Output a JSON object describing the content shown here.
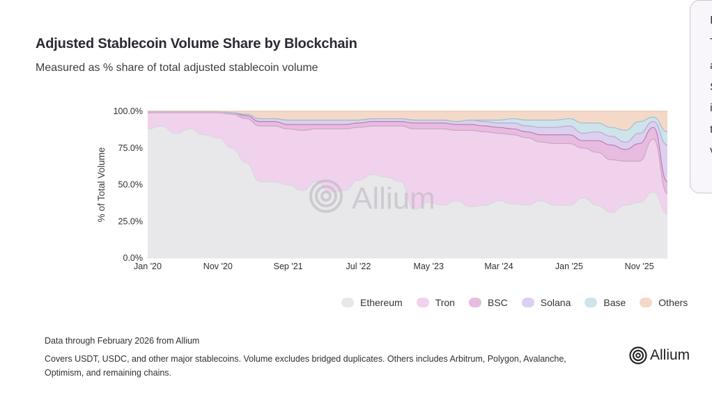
{
  "header": {
    "title": "Adjusted Stablecoin Volume Share by Blockchain",
    "subtitle": "Measured as % share of total adjusted stablecoin volume"
  },
  "legend": {
    "items": [
      {
        "label": "Ethereum",
        "color": "#e8e7ea"
      },
      {
        "label": "Tron",
        "color": "#f1d2ec"
      },
      {
        "label": "BSC",
        "color": "#e7bce0"
      },
      {
        "label": "Solana",
        "color": "#dcd0ee"
      },
      {
        "label": "Base",
        "color": "#cfe3ea"
      },
      {
        "label": "Others",
        "color": "#f4d9c8"
      }
    ]
  },
  "footer": {
    "source": "Data through February 2026 from Allium",
    "note": "Covers USDT, USDC, and other major stablecoins. Volume excludes bridged duplicates. Others includes Arbitrum, Polygon, Avalanche, Optimism, and remaining chains."
  },
  "brand": {
    "name": "Allium",
    "watermark": "Allium"
  },
  "side_panel": {
    "lines": [
      "I",
      "T",
      "a",
      "S",
      "i",
      "t",
      "v"
    ]
  },
  "chart_data": {
    "type": "area",
    "title": "Adjusted Stablecoin Volume Share by Blockchain",
    "subtitle": "Measured as % share of total adjusted stablecoin volume",
    "ylabel": "% of Total Volume",
    "xlabel": "",
    "ylim": [
      0,
      100
    ],
    "yticks": [
      "0.0%",
      "25.0%",
      "50.0%",
      "75.0%",
      "100.0%"
    ],
    "xticks": [
      "Jan '20",
      "Nov '20",
      "Sep '21",
      "Jul '22",
      "May '23",
      "Mar '24",
      "Jan '25",
      "Nov '25"
    ],
    "x": [
      "Jan '20",
      "Mar '20",
      "May '20",
      "Jul '20",
      "Sep '20",
      "Nov '20",
      "Jan '21",
      "Mar '21",
      "May '21",
      "Jul '21",
      "Sep '21",
      "Nov '21",
      "Jan '22",
      "Mar '22",
      "May '22",
      "Jul '22",
      "Sep '22",
      "Nov '22",
      "Jan '23",
      "Mar '23",
      "May '23",
      "Jul '23",
      "Sep '23",
      "Nov '23",
      "Jan '24",
      "Mar '24",
      "May '24",
      "Jul '24",
      "Sep '24",
      "Nov '24",
      "Jan '25",
      "Mar '25",
      "May '25",
      "Jul '25",
      "Sep '25",
      "Nov '25",
      "Jan '26",
      "Feb '26"
    ],
    "series": [
      {
        "name": "Ethereum",
        "color": "#e8e7ea",
        "values": [
          88,
          90,
          85,
          88,
          84,
          82,
          75,
          65,
          52,
          52,
          50,
          46,
          52,
          45,
          46,
          53,
          57,
          55,
          52,
          33,
          38,
          36,
          39,
          35,
          36,
          39,
          37,
          36,
          39,
          36,
          36,
          41,
          36,
          31,
          36,
          38,
          45,
          30
        ]
      },
      {
        "name": "Tron",
        "color": "#f1d2ec",
        "values": [
          11,
          9,
          14,
          11,
          15,
          17,
          23,
          30,
          38,
          38,
          38,
          41,
          36,
          43,
          42,
          36,
          33,
          35,
          38,
          55,
          50,
          52,
          48,
          52,
          50,
          46,
          47,
          46,
          40,
          42,
          42,
          34,
          36,
          36,
          30,
          28,
          36,
          14
        ]
      },
      {
        "name": "BSC",
        "color": "#e7bce0",
        "values": [
          1,
          1,
          1,
          1,
          1,
          1,
          1,
          2,
          3,
          3,
          3,
          4,
          3,
          3,
          3,
          3,
          3,
          3,
          3,
          4,
          4,
          4,
          4,
          4,
          4,
          4,
          4,
          4,
          5,
          6,
          6,
          5,
          8,
          10,
          8,
          12,
          8,
          8
        ]
      },
      {
        "name": "Solana",
        "color": "#dcd0ee",
        "values": [
          0,
          0,
          0,
          0,
          0,
          0,
          0,
          1,
          2,
          2,
          3,
          3,
          3,
          3,
          3,
          2,
          2,
          2,
          2,
          2,
          2,
          2,
          2,
          3,
          3,
          3,
          4,
          4,
          5,
          5,
          6,
          5,
          6,
          6,
          5,
          7,
          4,
          25
        ]
      },
      {
        "name": "Base",
        "color": "#cfe3ea",
        "values": [
          0,
          0,
          0,
          0,
          0,
          0,
          0,
          0,
          0,
          0,
          0,
          0,
          0,
          0,
          0,
          0,
          0,
          0,
          0,
          0,
          0,
          0,
          0,
          0,
          1,
          2,
          3,
          4,
          5,
          5,
          5,
          7,
          6,
          6,
          8,
          8,
          3,
          9
        ]
      },
      {
        "name": "Others",
        "color": "#f4d9c8",
        "values": [
          0,
          0,
          0,
          0,
          0,
          0,
          1,
          2,
          5,
          5,
          6,
          6,
          6,
          6,
          6,
          6,
          5,
          5,
          5,
          6,
          6,
          6,
          7,
          6,
          6,
          6,
          5,
          6,
          6,
          6,
          5,
          8,
          8,
          11,
          13,
          7,
          4,
          14
        ]
      }
    ],
    "grid": true,
    "legend_position": "bottom-right"
  }
}
